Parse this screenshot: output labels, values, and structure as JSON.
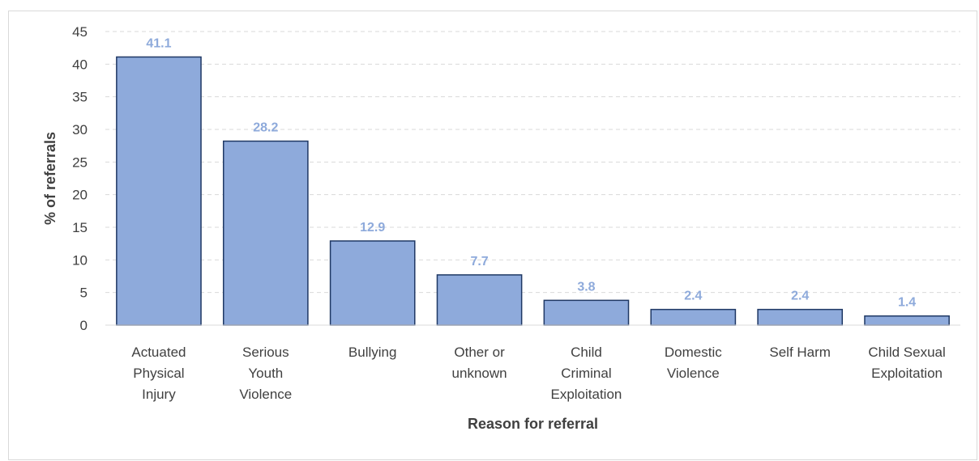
{
  "chart_data": {
    "type": "bar",
    "title": "",
    "xlabel": "Reason for referral",
    "ylabel": "% of referrals",
    "categories": [
      [
        "Actuated",
        "Physical",
        "Injury"
      ],
      [
        "Serious",
        "Youth",
        "Violence"
      ],
      [
        "Bullying"
      ],
      [
        "Other or",
        "unknown"
      ],
      [
        "Child",
        "Criminal",
        "Exploitation"
      ],
      [
        "Domestic",
        "Violence"
      ],
      [
        "Self Harm"
      ],
      [
        "Child Sexual",
        "Exploitation"
      ]
    ],
    "values": [
      41.1,
      28.2,
      12.9,
      7.7,
      3.8,
      2.4,
      2.4,
      1.4
    ],
    "ylim": [
      0,
      45
    ],
    "yticks": [
      0,
      5,
      10,
      15,
      20,
      25,
      30,
      35,
      40,
      45
    ],
    "grid": true,
    "colors": {
      "bar": "#8eaadb",
      "bar_edge": "#1f3864",
      "label": "#8eaadb",
      "grid": "#d9d9d9",
      "text": "#404040"
    }
  }
}
